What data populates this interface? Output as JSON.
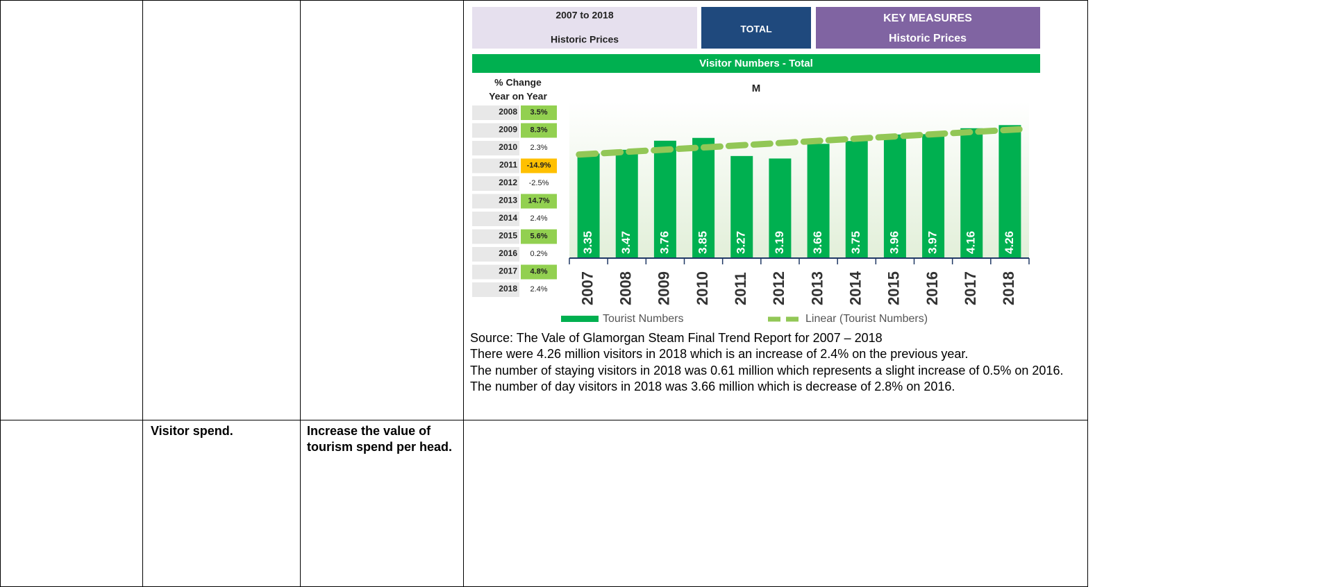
{
  "table": {
    "rows": [
      {
        "notes": [
          "Source: The Vale of Glamorgan Steam Final Trend Report for 2007 – 2018",
          "There were 4.26 million visitors in 2018 which is an increase of 2.4% on the previous year.",
          "The number of staying visitors in 2018 was 0.61 million which represents a slight increase of 0.5% on 2016.",
          "The number of day visitors in 2018 was 3.66 million which is decrease of 2.8% on 2016."
        ]
      },
      {
        "measure": "Visitor spend.",
        "objective": "Increase the value of tourism spend per head."
      }
    ]
  },
  "header": {
    "period": [
      "2007 to 2018",
      "Historic Prices"
    ],
    "scope": "TOTAL",
    "measures": [
      "KEY MEASURES",
      "Historic Prices"
    ],
    "banner": "Visitor Numbers - Total"
  },
  "pct_change": {
    "title": [
      "% Change",
      "Year on Year"
    ],
    "rows": [
      [
        "2008",
        "3.5%"
      ],
      [
        "2009",
        "8.3%"
      ],
      [
        "2010",
        "2.3%"
      ],
      [
        "2011",
        "-14.9%"
      ],
      [
        "2012",
        "-2.5%"
      ],
      [
        "2013",
        "14.7%"
      ],
      [
        "2014",
        "2.4%"
      ],
      [
        "2015",
        "5.6%"
      ],
      [
        "2016",
        "0.2%"
      ],
      [
        "2017",
        "4.8%"
      ],
      [
        "2018",
        "2.4%"
      ]
    ],
    "colors": [
      "#92d050",
      "#92d050",
      "#ffffff",
      "#ffc000",
      "#ffffff",
      "#92d050",
      "#ffffff",
      "#92d050",
      "#ffffff",
      "#92d050",
      "#ffffff"
    ]
  },
  "chart_data": {
    "type": "bar",
    "title": "M",
    "categories": [
      "2007",
      "2008",
      "2009",
      "2010",
      "2011",
      "2012",
      "2013",
      "2014",
      "2015",
      "2016",
      "2017",
      "2018"
    ],
    "series": [
      {
        "name": "Tourist Numbers",
        "color": "#00b050",
        "values": [
          3.35,
          3.47,
          3.76,
          3.85,
          3.27,
          3.19,
          3.66,
          3.75,
          3.96,
          3.97,
          4.16,
          4.26
        ]
      }
    ],
    "trendline": {
      "name": "Linear (Tourist Numbers)",
      "color": "#92c756"
    },
    "ylim": [
      0,
      5
    ]
  }
}
